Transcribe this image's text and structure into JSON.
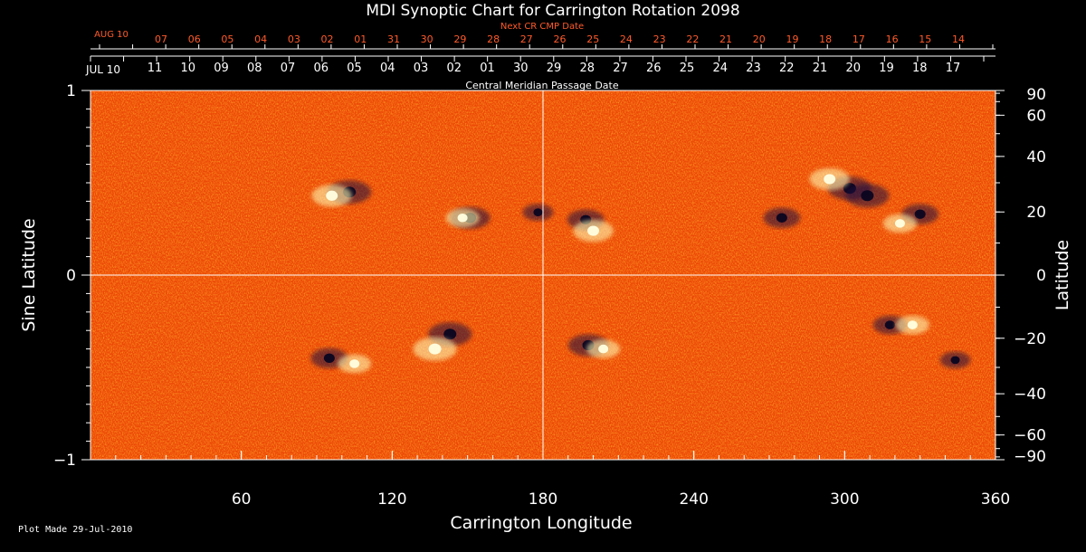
{
  "title": "MDI Synoptic Chart for Carrington Rotation 2098",
  "plot_made": "Plot Made 29-Jul-2010",
  "colors": {
    "background": "#000000",
    "axis": "#ffffff",
    "next_cr_axis": "#ff5a2a",
    "map_base": "#ff5a0a",
    "positive_polarity": "#fff7b0",
    "negative_polarity": "#1a1040"
  },
  "chart_data": {
    "type": "heatmap",
    "description_type": "synoptic magnetogram",
    "title": "MDI Synoptic Chart for Carrington Rotation 2098",
    "xlabel": "Carrington Longitude",
    "ylabel_left": "Sine Latitude",
    "ylabel_right": "Latitude",
    "xlim": [
      0,
      360
    ],
    "ylim": [
      -1,
      1
    ],
    "x_ticks": [
      60,
      120,
      180,
      240,
      300,
      360
    ],
    "y_ticks_left": [
      {
        "value": 1,
        "label": "1"
      },
      {
        "value": 0,
        "label": "0"
      },
      {
        "value": -1,
        "label": "−1"
      }
    ],
    "y_ticks_right": [
      90,
      60,
      40,
      20,
      0,
      -20,
      -40,
      -60,
      -90
    ],
    "grid": {
      "equator": true,
      "meridian_180": true
    },
    "top_axis_cmp": {
      "label": "Central Meridian Passage Date",
      "start_label": "JUL 10",
      "tick_labels": [
        "11",
        "10",
        "09",
        "08",
        "07",
        "06",
        "05",
        "04",
        "03",
        "02",
        "01",
        "30",
        "29",
        "28",
        "27",
        "26",
        "25",
        "24",
        "23",
        "22",
        "21",
        "20",
        "19",
        "18",
        "17"
      ]
    },
    "top_axis_next_cr": {
      "label": "Next CR CMP Date",
      "start_label": "AUG 10",
      "tick_labels": [
        "07",
        "06",
        "05",
        "04",
        "03",
        "02",
        "01",
        "31",
        "30",
        "29",
        "28",
        "27",
        "26",
        "25",
        "24",
        "23",
        "22",
        "21",
        "20",
        "19",
        "18",
        "17",
        "16",
        "15",
        "14"
      ]
    },
    "active_regions": [
      {
        "lon": 103,
        "sinlat": 0.45,
        "polarity": "negative",
        "strength": 1.0
      },
      {
        "lon": 96,
        "sinlat": 0.43,
        "polarity": "positive",
        "strength": 0.9
      },
      {
        "lon": 151,
        "sinlat": 0.31,
        "polarity": "negative",
        "strength": 0.9
      },
      {
        "lon": 148,
        "sinlat": 0.31,
        "polarity": "positive",
        "strength": 0.7
      },
      {
        "lon": 178,
        "sinlat": 0.34,
        "polarity": "negative",
        "strength": 0.6
      },
      {
        "lon": 197,
        "sinlat": 0.3,
        "polarity": "negative",
        "strength": 0.8
      },
      {
        "lon": 200,
        "sinlat": 0.24,
        "polarity": "positive",
        "strength": 0.9
      },
      {
        "lon": 275,
        "sinlat": 0.31,
        "polarity": "negative",
        "strength": 0.8
      },
      {
        "lon": 302,
        "sinlat": 0.47,
        "polarity": "negative",
        "strength": 1.0
      },
      {
        "lon": 309,
        "sinlat": 0.43,
        "polarity": "negative",
        "strength": 1.0
      },
      {
        "lon": 294,
        "sinlat": 0.52,
        "polarity": "positive",
        "strength": 0.9
      },
      {
        "lon": 330,
        "sinlat": 0.33,
        "polarity": "negative",
        "strength": 0.8
      },
      {
        "lon": 322,
        "sinlat": 0.28,
        "polarity": "positive",
        "strength": 0.7
      },
      {
        "lon": 95,
        "sinlat": -0.45,
        "polarity": "negative",
        "strength": 0.8
      },
      {
        "lon": 105,
        "sinlat": -0.48,
        "polarity": "positive",
        "strength": 0.7
      },
      {
        "lon": 143,
        "sinlat": -0.32,
        "polarity": "negative",
        "strength": 1.0
      },
      {
        "lon": 137,
        "sinlat": -0.4,
        "polarity": "positive",
        "strength": 1.0
      },
      {
        "lon": 198,
        "sinlat": -0.38,
        "polarity": "negative",
        "strength": 0.9
      },
      {
        "lon": 204,
        "sinlat": -0.4,
        "polarity": "positive",
        "strength": 0.7
      },
      {
        "lon": 318,
        "sinlat": -0.27,
        "polarity": "negative",
        "strength": 0.7
      },
      {
        "lon": 327,
        "sinlat": -0.27,
        "polarity": "positive",
        "strength": 0.7
      },
      {
        "lon": 344,
        "sinlat": -0.46,
        "polarity": "negative",
        "strength": 0.6
      }
    ]
  }
}
